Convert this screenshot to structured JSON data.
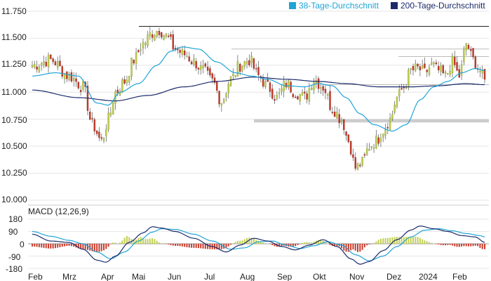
{
  "chart_data": [
    {
      "type": "candlestick",
      "panel": "price",
      "y_ticks": [
        "11.750",
        "11.500",
        "11.250",
        "11.000",
        "10.750",
        "10.500",
        "10.250",
        "10.000"
      ],
      "ylim": [
        10.0,
        11.78
      ],
      "x_ticks": [
        "Feb",
        "Mrz",
        "Apr",
        "Mai",
        "Jun",
        "Jul",
        "Aug",
        "Sep",
        "Okt",
        "Nov",
        "Dez",
        "2024",
        "Feb"
      ],
      "legend": [
        {
          "name": "38-Tage-Durchschnitt",
          "color": "#1fa4d6"
        },
        {
          "name": "200-Tage-Durchschnitt",
          "color": "#1b2a6b"
        }
      ],
      "legend_position": "top-right",
      "up_color": "#c2cf52",
      "down_color": "#c93c2c",
      "close_anchors": [
        [
          0,
          11.25
        ],
        [
          8,
          11.3
        ],
        [
          16,
          11.15
        ],
        [
          22,
          11.05
        ],
        [
          26,
          10.7
        ],
        [
          30,
          10.55
        ],
        [
          33,
          10.75
        ],
        [
          36,
          11.0
        ],
        [
          40,
          11.1
        ],
        [
          44,
          11.3
        ],
        [
          48,
          11.45
        ],
        [
          52,
          11.55
        ],
        [
          55,
          11.58
        ],
        [
          58,
          11.52
        ],
        [
          62,
          11.4
        ],
        [
          66,
          11.35
        ],
        [
          70,
          11.28
        ],
        [
          74,
          11.2
        ],
        [
          78,
          11.1
        ],
        [
          82,
          10.92
        ],
        [
          86,
          11.12
        ],
        [
          90,
          11.25
        ],
        [
          94,
          11.3
        ],
        [
          98,
          11.15
        ],
        [
          102,
          11.05
        ],
        [
          106,
          10.95
        ],
        [
          110,
          11.08
        ],
        [
          114,
          11.0
        ],
        [
          118,
          10.95
        ],
        [
          122,
          11.12
        ],
        [
          126,
          11.05
        ],
        [
          130,
          10.85
        ],
        [
          134,
          10.75
        ],
        [
          137,
          10.55
        ],
        [
          140,
          10.3
        ],
        [
          143,
          10.35
        ],
        [
          146,
          10.5
        ],
        [
          149,
          10.55
        ],
        [
          152,
          10.65
        ],
        [
          155,
          10.75
        ],
        [
          158,
          10.95
        ],
        [
          161,
          11.05
        ],
        [
          164,
          11.2
        ],
        [
          167,
          11.22
        ],
        [
          170,
          11.18
        ],
        [
          173,
          11.25
        ],
        [
          176,
          11.2
        ],
        [
          179,
          11.15
        ],
        [
          182,
          11.28
        ],
        [
          185,
          11.15
        ],
        [
          188,
          11.45
        ],
        [
          191,
          11.3
        ],
        [
          194,
          11.2
        ],
        [
          196,
          11.1
        ]
      ],
      "sma38_anchors": [
        [
          0,
          11.15
        ],
        [
          10,
          11.18
        ],
        [
          20,
          11.15
        ],
        [
          28,
          10.9
        ],
        [
          33,
          10.88
        ],
        [
          38,
          11.0
        ],
        [
          46,
          11.08
        ],
        [
          54,
          11.25
        ],
        [
          60,
          11.38
        ],
        [
          65,
          11.42
        ],
        [
          72,
          11.4
        ],
        [
          80,
          11.28
        ],
        [
          88,
          11.18
        ],
        [
          95,
          11.15
        ],
        [
          102,
          11.12
        ],
        [
          110,
          11.06
        ],
        [
          118,
          11.05
        ],
        [
          124,
          11.08
        ],
        [
          130,
          11.06
        ],
        [
          136,
          10.95
        ],
        [
          142,
          10.8
        ],
        [
          148,
          10.7
        ],
        [
          156,
          10.64
        ],
        [
          162,
          10.7
        ],
        [
          168,
          10.93
        ],
        [
          174,
          11.05
        ],
        [
          180,
          11.1
        ],
        [
          186,
          11.18
        ],
        [
          192,
          11.22
        ],
        [
          196,
          11.2
        ]
      ],
      "sma200_anchors": [
        [
          0,
          11.02
        ],
        [
          20,
          10.95
        ],
        [
          36,
          10.92
        ],
        [
          50,
          10.97
        ],
        [
          66,
          11.05
        ],
        [
          80,
          11.1
        ],
        [
          96,
          11.14
        ],
        [
          110,
          11.12
        ],
        [
          124,
          11.1
        ],
        [
          136,
          11.08
        ],
        [
          150,
          11.05
        ],
        [
          164,
          11.05
        ],
        [
          176,
          11.06
        ],
        [
          188,
          11.08
        ],
        [
          196,
          11.07
        ]
      ],
      "resistance_lines": [
        {
          "y": 11.61,
          "x_start_label": "Mai",
          "color": "#222222"
        },
        {
          "y": 11.4,
          "x_start_label": "Aug",
          "color": "#bbbbbb"
        },
        {
          "y": 11.33,
          "x_start_label": "Dez",
          "color": "#bbbbbb"
        },
        {
          "y": 11.07,
          "x_start_label": "Okt",
          "color": "#bbbbbb"
        }
      ],
      "support_band": {
        "y0": 10.72,
        "y1": 10.75,
        "x_start_label": "Aug",
        "color": "#cccccc"
      }
    },
    {
      "type": "macd",
      "panel": "indicator",
      "title": "MACD (12,26,9)",
      "y_ticks": [
        "180",
        "90",
        "0",
        "-90",
        "-180"
      ],
      "ylim": [
        -180,
        180
      ],
      "macd_color": "#1b2a6b",
      "signal_color": "#1fa4d6",
      "hist_pos_color": "#c2cf52",
      "hist_neg_color": "#c93c2c",
      "macd_anchors": [
        [
          0,
          70
        ],
        [
          8,
          20
        ],
        [
          16,
          10
        ],
        [
          22,
          -40
        ],
        [
          28,
          -120
        ],
        [
          32,
          -135
        ],
        [
          36,
          -90
        ],
        [
          42,
          10
        ],
        [
          48,
          80
        ],
        [
          52,
          125
        ],
        [
          56,
          115
        ],
        [
          62,
          90
        ],
        [
          70,
          40
        ],
        [
          78,
          -20
        ],
        [
          84,
          -60
        ],
        [
          90,
          -10
        ],
        [
          96,
          40
        ],
        [
          102,
          20
        ],
        [
          108,
          -20
        ],
        [
          114,
          -45
        ],
        [
          120,
          -10
        ],
        [
          126,
          30
        ],
        [
          132,
          -20
        ],
        [
          138,
          -110
        ],
        [
          142,
          -150
        ],
        [
          146,
          -130
        ],
        [
          152,
          -50
        ],
        [
          158,
          30
        ],
        [
          164,
          100
        ],
        [
          168,
          130
        ],
        [
          174,
          110
        ],
        [
          180,
          90
        ],
        [
          186,
          60
        ],
        [
          192,
          50
        ],
        [
          196,
          10
        ]
      ],
      "signal_anchors": [
        [
          0,
          90
        ],
        [
          8,
          55
        ],
        [
          16,
          25
        ],
        [
          22,
          0
        ],
        [
          28,
          -60
        ],
        [
          34,
          -110
        ],
        [
          40,
          -60
        ],
        [
          46,
          20
        ],
        [
          52,
          85
        ],
        [
          56,
          110
        ],
        [
          62,
          105
        ],
        [
          70,
          70
        ],
        [
          78,
          20
        ],
        [
          86,
          -40
        ],
        [
          92,
          -30
        ],
        [
          98,
          15
        ],
        [
          104,
          20
        ],
        [
          110,
          -10
        ],
        [
          116,
          -35
        ],
        [
          122,
          -15
        ],
        [
          128,
          15
        ],
        [
          134,
          -10
        ],
        [
          140,
          -80
        ],
        [
          146,
          -125
        ],
        [
          152,
          -90
        ],
        [
          158,
          -20
        ],
        [
          164,
          50
        ],
        [
          170,
          100
        ],
        [
          176,
          110
        ],
        [
          182,
          95
        ],
        [
          188,
          75
        ],
        [
          194,
          60
        ],
        [
          196,
          50
        ]
      ]
    }
  ]
}
